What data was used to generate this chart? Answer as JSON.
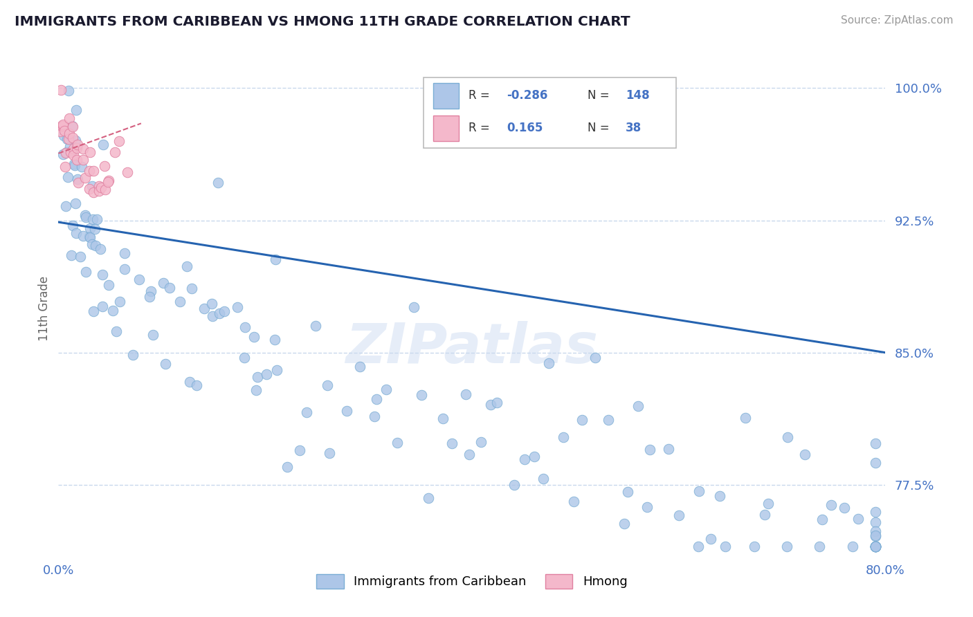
{
  "title": "IMMIGRANTS FROM CARIBBEAN VS HMONG 11TH GRADE CORRELATION CHART",
  "source_text": "Source: ZipAtlas.com",
  "ylabel": "11th Grade",
  "xlim": [
    0.0,
    0.8
  ],
  "ylim": [
    0.735,
    1.015
  ],
  "xticks": [
    0.0,
    0.1,
    0.2,
    0.3,
    0.4,
    0.5,
    0.6,
    0.7,
    0.8
  ],
  "xticklabels": [
    "0.0%",
    "",
    "",
    "",
    "",
    "",
    "",
    "",
    "80.0%"
  ],
  "yticks": [
    0.775,
    0.85,
    0.925,
    1.0
  ],
  "yticklabels": [
    "77.5%",
    "85.0%",
    "92.5%",
    "100.0%"
  ],
  "caribbean_R": -0.286,
  "caribbean_N": 148,
  "hmong_R": 0.165,
  "hmong_N": 38,
  "caribbean_color": "#adc6e8",
  "caribbean_edge": "#7aadd4",
  "hmong_color": "#f4b8cb",
  "hmong_edge": "#e080a0",
  "trend_caribbean_color": "#2563b0",
  "trend_hmong_color": "#d46080",
  "watermark": "ZIPatlas",
  "title_color": "#1a1a2e",
  "axis_color": "#4472c4",
  "grid_color": "#c8d8ec",
  "trend_c_x0": 0.0,
  "trend_c_y0": 0.924,
  "trend_c_x1": 0.8,
  "trend_c_y1": 0.85,
  "trend_h_x0": 0.0,
  "trend_h_y0": 0.963,
  "trend_h_x1": 0.08,
  "trend_h_y1": 0.98,
  "caribbean_x": [
    0.003,
    0.005,
    0.006,
    0.007,
    0.008,
    0.009,
    0.01,
    0.011,
    0.012,
    0.013,
    0.014,
    0.015,
    0.016,
    0.017,
    0.018,
    0.019,
    0.02,
    0.021,
    0.022,
    0.023,
    0.024,
    0.025,
    0.026,
    0.027,
    0.028,
    0.03,
    0.031,
    0.032,
    0.033,
    0.034,
    0.035,
    0.036,
    0.037,
    0.038,
    0.039,
    0.04,
    0.042,
    0.044,
    0.046,
    0.048,
    0.05,
    0.055,
    0.06,
    0.065,
    0.07,
    0.075,
    0.08,
    0.085,
    0.09,
    0.095,
    0.1,
    0.105,
    0.11,
    0.115,
    0.12,
    0.125,
    0.13,
    0.135,
    0.14,
    0.145,
    0.15,
    0.155,
    0.16,
    0.165,
    0.17,
    0.175,
    0.18,
    0.185,
    0.19,
    0.195,
    0.2,
    0.205,
    0.21,
    0.215,
    0.22,
    0.23,
    0.24,
    0.25,
    0.26,
    0.27,
    0.28,
    0.29,
    0.3,
    0.31,
    0.32,
    0.33,
    0.34,
    0.35,
    0.36,
    0.37,
    0.38,
    0.39,
    0.4,
    0.41,
    0.42,
    0.43,
    0.44,
    0.45,
    0.46,
    0.47,
    0.48,
    0.49,
    0.5,
    0.51,
    0.52,
    0.53,
    0.54,
    0.55,
    0.56,
    0.57,
    0.58,
    0.59,
    0.6,
    0.61,
    0.62,
    0.63,
    0.64,
    0.65,
    0.66,
    0.67,
    0.68,
    0.69,
    0.7,
    0.71,
    0.72,
    0.73,
    0.74,
    0.75,
    0.76,
    0.77,
    0.78,
    0.79,
    0.8,
    0.81,
    0.82,
    0.83,
    0.84,
    0.85,
    0.86,
    0.87,
    0.88,
    0.89,
    0.9,
    0.91,
    0.92,
    0.93,
    0.94,
    0.95
  ],
  "caribbean_y": [
    0.96,
    0.955,
    0.965,
    0.97,
    0.95,
    0.958,
    0.963,
    0.94,
    0.952,
    0.945,
    0.935,
    0.948,
    0.942,
    0.93,
    0.938,
    0.955,
    0.932,
    0.945,
    0.928,
    0.94,
    0.922,
    0.935,
    0.918,
    0.925,
    0.93,
    0.912,
    0.92,
    0.905,
    0.915,
    0.908,
    0.918,
    0.9,
    0.91,
    0.895,
    0.903,
    0.908,
    0.9,
    0.893,
    0.897,
    0.89,
    0.895,
    0.9,
    0.89,
    0.885,
    0.892,
    0.88,
    0.887,
    0.875,
    0.882,
    0.878,
    0.888,
    0.872,
    0.878,
    0.865,
    0.872,
    0.86,
    0.868,
    0.855,
    0.862,
    0.858,
    0.865,
    0.85,
    0.858,
    0.845,
    0.852,
    0.848,
    0.855,
    0.84,
    0.848,
    0.842,
    0.85,
    0.838,
    0.845,
    0.832,
    0.84,
    0.835,
    0.828,
    0.838,
    0.83,
    0.82,
    0.835,
    0.825,
    0.832,
    0.818,
    0.828,
    0.815,
    0.822,
    0.81,
    0.818,
    0.808,
    0.815,
    0.805,
    0.812,
    0.802,
    0.808,
    0.8,
    0.805,
    0.798,
    0.803,
    0.795,
    0.8,
    0.792,
    0.797,
    0.789,
    0.794,
    0.786,
    0.791,
    0.783,
    0.788,
    0.78,
    0.784,
    0.776,
    0.781,
    0.773,
    0.778,
    0.77,
    0.775,
    0.767,
    0.772,
    0.764,
    0.769,
    0.761,
    0.766,
    0.758,
    0.763,
    0.755,
    0.76,
    0.752,
    0.757,
    0.749,
    0.754,
    0.746,
    0.751,
    0.743,
    0.748,
    0.74,
    0.745,
    0.737,
    0.742,
    0.734,
    0.739,
    0.731,
    0.736,
    0.728,
    0.733,
    0.725,
    0.73,
    0.722
  ],
  "hmong_x": [
    0.001,
    0.002,
    0.003,
    0.004,
    0.005,
    0.006,
    0.007,
    0.008,
    0.009,
    0.01,
    0.011,
    0.012,
    0.013,
    0.014,
    0.015,
    0.016,
    0.017,
    0.018,
    0.019,
    0.02,
    0.022,
    0.024,
    0.026,
    0.028,
    0.03,
    0.032,
    0.034,
    0.036,
    0.038,
    0.04,
    0.042,
    0.044,
    0.046,
    0.048,
    0.05,
    0.055,
    0.06,
    0.065
  ],
  "hmong_y": [
    0.985,
    0.978,
    0.972,
    0.98,
    0.975,
    0.982,
    0.977,
    0.97,
    0.968,
    0.965,
    0.972,
    0.968,
    0.963,
    0.97,
    0.965,
    0.96,
    0.967,
    0.962,
    0.958,
    0.964,
    0.96,
    0.956,
    0.952,
    0.958,
    0.954,
    0.95,
    0.956,
    0.948,
    0.954,
    0.95,
    0.946,
    0.952,
    0.944,
    0.95,
    0.946,
    0.952,
    0.958,
    0.954
  ]
}
